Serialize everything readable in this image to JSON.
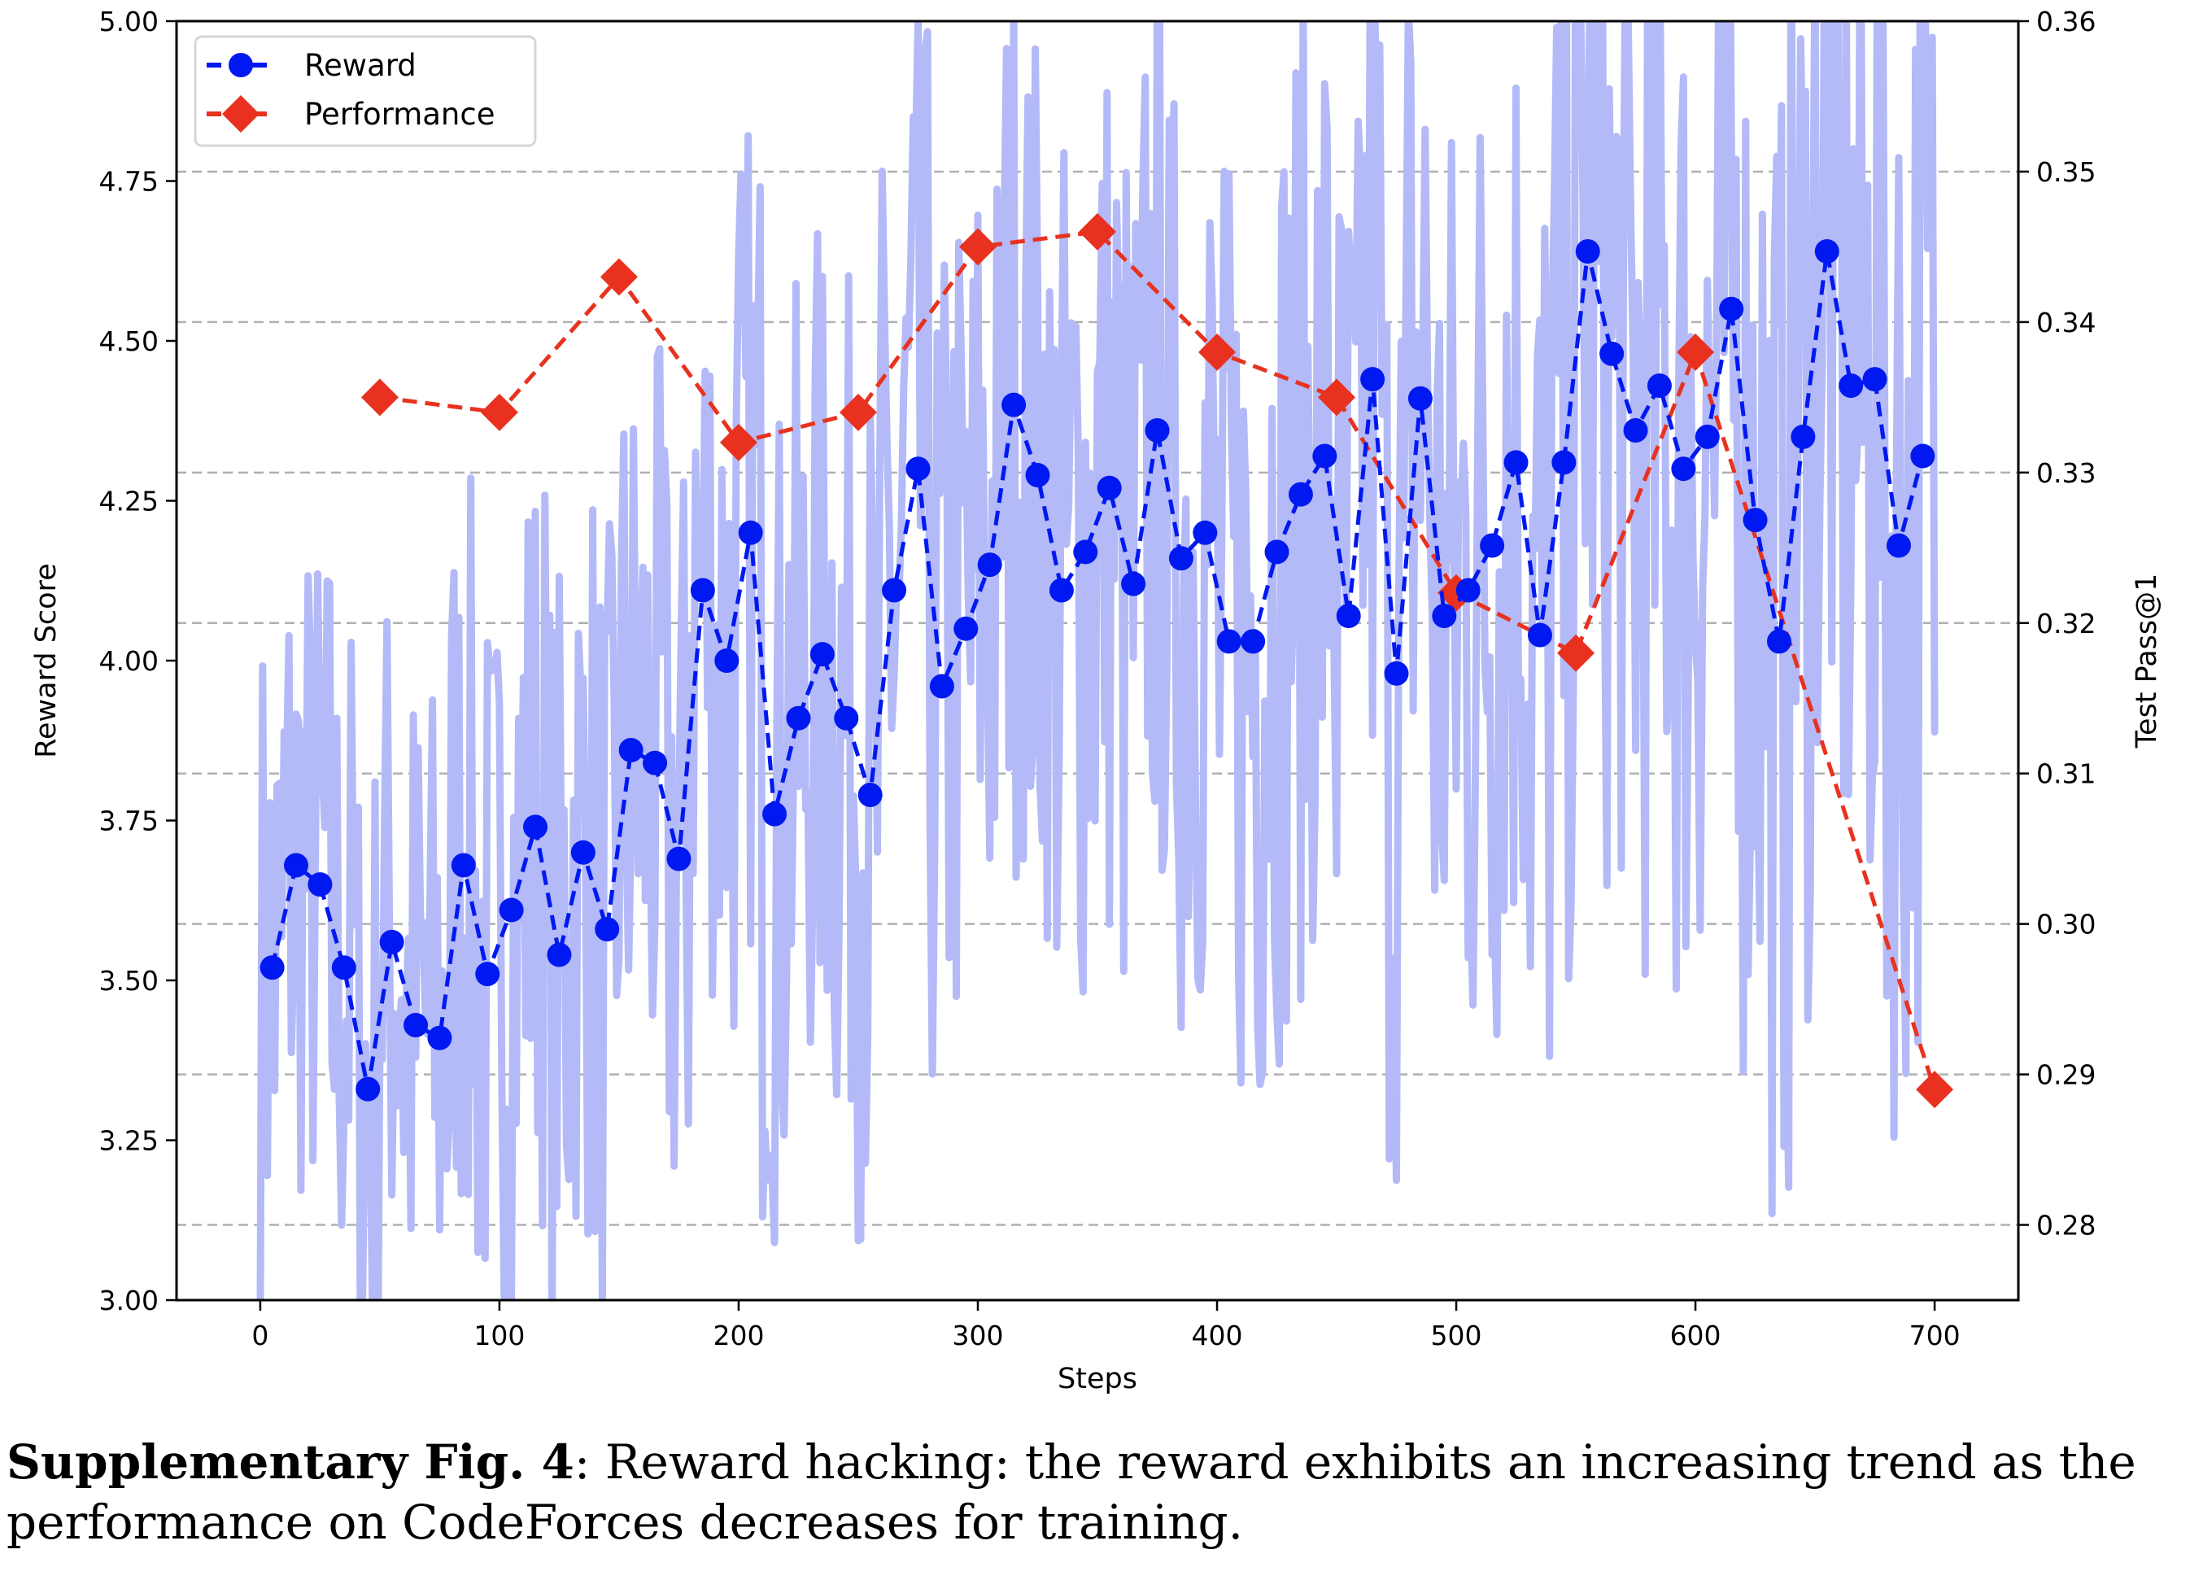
{
  "chart_data": {
    "type": "line",
    "title": "",
    "xlabel": "Steps",
    "ylabel": "Reward Score",
    "y2label": "Test Pass@1",
    "xlim": [
      -35,
      735
    ],
    "ylim": [
      3.0,
      5.0
    ],
    "y2lim": [
      0.275,
      0.36
    ],
    "xticks": [
      0,
      100,
      200,
      300,
      400,
      500,
      600,
      700
    ],
    "yticks": [
      "3.00",
      "3.25",
      "3.50",
      "3.75",
      "4.00",
      "4.25",
      "4.50",
      "4.75",
      "5.00"
    ],
    "y2ticks": [
      "0.28",
      "0.29",
      "0.30",
      "0.31",
      "0.32",
      "0.33",
      "0.34",
      "0.35",
      "0.36"
    ],
    "grid": "horizontal dashed at right-axis ticks",
    "legend_position": "top-left",
    "colors": {
      "reward": "#0019f0",
      "raw_reward": "#b3baf7",
      "performance": "#e8321f",
      "grid": "#b0b0b0"
    },
    "series": [
      {
        "name": "Reward",
        "axis": "left",
        "marker": "circle",
        "linestyle": "dashed",
        "x": [
          5,
          15,
          25,
          35,
          45,
          55,
          65,
          75,
          85,
          95,
          105,
          115,
          125,
          135,
          145,
          155,
          165,
          175,
          185,
          195,
          205,
          215,
          225,
          235,
          245,
          255,
          265,
          275,
          285,
          295,
          305,
          315,
          325,
          335,
          345,
          355,
          365,
          375,
          385,
          395,
          405,
          415,
          425,
          435,
          445,
          455,
          465,
          475,
          485,
          495,
          505,
          515,
          525,
          535,
          545,
          555,
          565,
          575,
          585,
          595,
          605,
          615,
          625,
          635,
          645,
          655,
          665,
          675,
          685,
          695
        ],
        "values": [
          3.52,
          3.68,
          3.65,
          3.52,
          3.33,
          3.56,
          3.43,
          3.41,
          3.68,
          3.51,
          3.61,
          3.74,
          3.54,
          3.7,
          3.58,
          3.86,
          3.84,
          3.69,
          4.11,
          4.0,
          4.2,
          3.76,
          3.91,
          4.01,
          3.91,
          3.79,
          4.11,
          4.3,
          3.96,
          4.05,
          4.15,
          4.4,
          4.29,
          4.11,
          4.17,
          4.27,
          4.12,
          4.36,
          4.16,
          4.2,
          4.03,
          4.03,
          4.17,
          4.26,
          4.32,
          4.07,
          4.44,
          3.98,
          4.41,
          4.07,
          4.11,
          4.18,
          4.31,
          4.04,
          4.31,
          4.64,
          4.48,
          4.36,
          4.43,
          4.3,
          4.35,
          4.55,
          4.22,
          4.03,
          4.35,
          4.64,
          4.43,
          4.44,
          4.18,
          4.32
        ]
      },
      {
        "name": "Performance",
        "axis": "right",
        "marker": "diamond",
        "linestyle": "dashed",
        "x": [
          50,
          100,
          150,
          200,
          250,
          300,
          350,
          400,
          450,
          500,
          550,
          600,
          700
        ],
        "values": [
          0.335,
          0.334,
          0.343,
          0.332,
          0.334,
          0.345,
          0.346,
          0.338,
          0.335,
          0.322,
          0.318,
          0.338,
          0.289
        ]
      },
      {
        "name": "Raw reward (unlabeled background)",
        "axis": "left",
        "note": "high-variance per-step reward trace spanning roughly 3.0 to 5.0 over steps 0-700"
      }
    ]
  },
  "caption": {
    "label": "Supplementary Fig. 4",
    "text": ": Reward hacking: the reward exhibits an increasing trend as the performance on CodeForces decreases for training."
  }
}
